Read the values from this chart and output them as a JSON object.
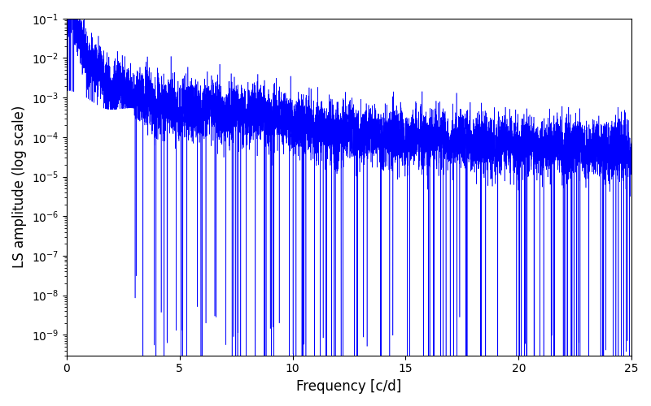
{
  "title": "",
  "xlabel": "Frequency [c/d]",
  "ylabel": "LS amplitude (log scale)",
  "xlim": [
    0,
    25
  ],
  "ylim": [
    3e-10,
    0.1
  ],
  "xticks": [
    0,
    5,
    10,
    15,
    20,
    25
  ],
  "line_color": "#0000ff",
  "background_color": "#ffffff",
  "figsize": [
    8.0,
    5.0
  ],
  "dpi": 100,
  "freq_max": 25.0,
  "n_points": 10000,
  "seed": 7
}
